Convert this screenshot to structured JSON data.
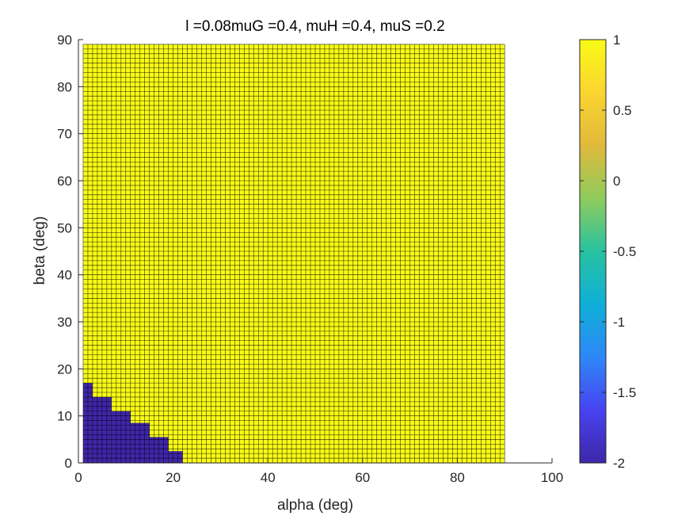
{
  "chart_data": {
    "type": "heatmap",
    "title": "l =0.08muG =0.4, muH =0.4, muS =0.2",
    "xlabel": "alpha (deg)",
    "ylabel": "beta (deg)",
    "xlim": [
      0,
      100
    ],
    "ylim": [
      0,
      90
    ],
    "x_ticks": [
      "0",
      "20",
      "40",
      "60",
      "80",
      "100"
    ],
    "y_ticks": [
      "0",
      "10",
      "20",
      "30",
      "40",
      "50",
      "60",
      "70",
      "80",
      "90"
    ],
    "grid_step": 1,
    "grid_extent": {
      "alpha": [
        1,
        90
      ],
      "beta": [
        0,
        89
      ]
    },
    "region_value_default": 1,
    "low_region": {
      "value": -2,
      "boundary": [
        {
          "alpha_from": 1,
          "alpha_to": 3,
          "beta_max": 17
        },
        {
          "alpha_from": 3,
          "alpha_to": 7,
          "beta_max": 14
        },
        {
          "alpha_from": 7,
          "alpha_to": 11,
          "beta_max": 11
        },
        {
          "alpha_from": 11,
          "alpha_to": 15,
          "beta_max": 8.5
        },
        {
          "alpha_from": 15,
          "alpha_to": 19,
          "beta_max": 5.5
        },
        {
          "alpha_from": 19,
          "alpha_to": 22,
          "beta_max": 2.5
        }
      ]
    },
    "colorbar": {
      "min": -2,
      "max": 1,
      "ticks": [
        "1",
        "0.5",
        "0",
        "-0.5",
        "-1",
        "-1.5",
        "-2"
      ],
      "colormap_stops": [
        "#3e26a8",
        "#4743f1",
        "#2e87f7",
        "#0fafd8",
        "#28c2a0",
        "#8fcb5c",
        "#e0b93b",
        "#fbd530",
        "#f9fb15"
      ]
    },
    "colors": {
      "high": "#f9fb15",
      "low": "#3e26a8",
      "edge": "#000000"
    }
  }
}
